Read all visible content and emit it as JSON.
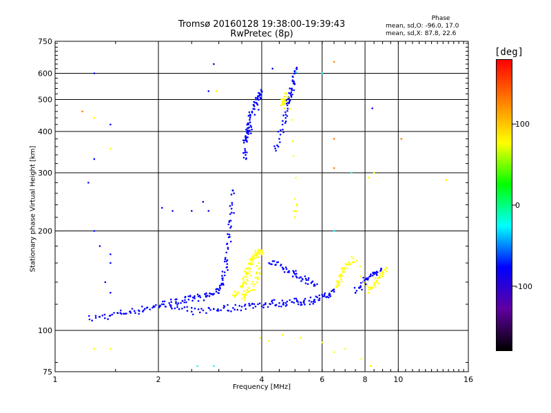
{
  "chart_data": {
    "type": "scatter",
    "title": "Tromsø 20160128 19:38:00-19:39:43",
    "subtitle": "RwPretec (8p)",
    "xlabel": "Frequency [MHz]",
    "ylabel": "Stationary phase Virtual Height [km]",
    "x_scale": "log",
    "y_scale": "log",
    "xlim": [
      1,
      16
    ],
    "ylim": [
      75,
      750
    ],
    "x_ticks": [
      1,
      2,
      4,
      6,
      8,
      10,
      16
    ],
    "y_ticks": [
      75,
      100,
      200,
      300,
      400,
      500,
      600,
      750
    ],
    "x_grid": [
      2,
      4,
      6,
      8,
      10
    ],
    "y_grid": [
      100,
      200,
      300,
      400,
      500,
      600
    ],
    "grid": true,
    "stats": {
      "header": "Phase",
      "line_o": "mean, sd,O: -96.0, 17.0",
      "line_x": "mean, sd,X:  87.8, 22.6"
    },
    "colorbar": {
      "unit": "[deg]",
      "range": [
        -180,
        180
      ],
      "ticks": [
        100,
        0,
        -100
      ],
      "colors": [
        "#ff0000",
        "#ff8000",
        "#ffff00",
        "#00ff00",
        "#00ffff",
        "#0000ff",
        "#6000a0",
        "#000000"
      ]
    },
    "traces": [
      {
        "phase": -100,
        "points": [
          [
            1.26,
            108
          ],
          [
            1.35,
            110
          ],
          [
            1.45,
            111
          ],
          [
            1.55,
            113
          ],
          [
            1.65,
            114
          ],
          [
            1.75,
            115
          ],
          [
            1.85,
            117
          ],
          [
            1.95,
            118
          ],
          [
            2.05,
            120
          ],
          [
            2.15,
            121
          ],
          [
            2.25,
            122
          ],
          [
            2.35,
            123
          ],
          [
            2.45,
            124
          ],
          [
            2.55,
            125
          ],
          [
            2.65,
            126
          ],
          [
            2.75,
            127
          ],
          [
            2.85,
            129
          ],
          [
            2.95,
            131
          ],
          [
            3.02,
            135
          ],
          [
            3.08,
            142
          ],
          [
            3.12,
            150
          ],
          [
            3.16,
            162
          ],
          [
            3.19,
            178
          ],
          [
            3.22,
            195
          ],
          [
            3.25,
            215
          ],
          [
            3.28,
            240
          ],
          [
            3.3,
            265
          ]
        ]
      },
      {
        "phase": -100,
        "points": [
          [
            2.1,
            118
          ],
          [
            2.3,
            116
          ],
          [
            2.5,
            114
          ],
          [
            2.7,
            115
          ],
          [
            2.9,
            116
          ],
          [
            3.1,
            117
          ],
          [
            3.3,
            117
          ],
          [
            3.5,
            118
          ],
          [
            3.7,
            119
          ],
          [
            3.9,
            120
          ],
          [
            4.1,
            120
          ],
          [
            4.3,
            121
          ],
          [
            4.5,
            121
          ],
          [
            4.7,
            121
          ],
          [
            4.9,
            122
          ],
          [
            5.1,
            122
          ],
          [
            5.3,
            122
          ],
          [
            5.5,
            123
          ],
          [
            5.7,
            124
          ],
          [
            5.9,
            125
          ],
          [
            6.1,
            127
          ],
          [
            6.3,
            129
          ],
          [
            6.5,
            131
          ]
        ]
      },
      {
        "phase": -100,
        "points": [
          [
            3.55,
            370
          ],
          [
            3.6,
            385
          ],
          [
            3.62,
            400
          ],
          [
            3.65,
            420
          ],
          [
            3.7,
            440
          ],
          [
            3.75,
            460
          ],
          [
            3.8,
            480
          ],
          [
            3.85,
            500
          ],
          [
            3.9,
            510
          ],
          [
            3.95,
            520
          ],
          [
            4.0,
            530
          ],
          [
            3.58,
            350
          ],
          [
            3.6,
            330
          ],
          [
            3.66,
            410
          ],
          [
            3.72,
            395
          ]
        ]
      },
      {
        "phase": -100,
        "points": [
          [
            4.4,
            350
          ],
          [
            4.5,
            380
          ],
          [
            4.6,
            420
          ],
          [
            4.7,
            450
          ],
          [
            4.75,
            480
          ],
          [
            4.8,
            500
          ],
          [
            4.85,
            520
          ],
          [
            4.9,
            540
          ],
          [
            4.95,
            560
          ],
          [
            5.0,
            600
          ],
          [
            5.05,
            620
          ]
        ]
      },
      {
        "phase": -100,
        "points": [
          [
            4.2,
            160
          ],
          [
            4.4,
            158
          ],
          [
            4.6,
            155
          ],
          [
            4.8,
            150
          ],
          [
            5.0,
            148
          ],
          [
            5.2,
            145
          ],
          [
            5.4,
            142
          ],
          [
            5.6,
            140
          ],
          [
            5.8,
            138
          ]
        ]
      },
      {
        "phase": -100,
        "points": [
          [
            7.5,
            130
          ],
          [
            7.7,
            135
          ],
          [
            7.9,
            140
          ],
          [
            8.1,
            143
          ],
          [
            8.3,
            146
          ],
          [
            8.5,
            148
          ],
          [
            8.7,
            150
          ],
          [
            8.9,
            152
          ]
        ]
      },
      {
        "phase": 100,
        "points": [
          [
            3.3,
            128
          ],
          [
            3.4,
            131
          ],
          [
            3.5,
            135
          ],
          [
            3.55,
            140
          ],
          [
            3.6,
            145
          ],
          [
            3.62,
            150
          ],
          [
            3.65,
            155
          ],
          [
            3.7,
            160
          ],
          [
            3.75,
            165
          ],
          [
            3.8,
            168
          ],
          [
            3.85,
            170
          ],
          [
            3.9,
            172
          ],
          [
            3.95,
            172
          ],
          [
            4.0,
            170
          ],
          [
            3.5,
            125
          ],
          [
            3.6,
            128
          ],
          [
            3.7,
            132
          ],
          [
            3.8,
            138
          ],
          [
            3.9,
            145
          ],
          [
            3.95,
            155
          ]
        ]
      },
      {
        "phase": 100,
        "points": [
          [
            4.55,
            480
          ],
          [
            4.6,
            500
          ],
          [
            4.65,
            470
          ],
          [
            4.7,
            520
          ],
          [
            4.75,
            510
          ],
          [
            5.0,
            250
          ],
          [
            5.0,
            220
          ]
        ]
      },
      {
        "phase": 100,
        "points": [
          [
            6.6,
            135
          ],
          [
            6.7,
            140
          ],
          [
            6.8,
            145
          ],
          [
            6.9,
            150
          ],
          [
            7.0,
            155
          ],
          [
            7.2,
            160
          ],
          [
            7.4,
            165
          ],
          [
            8.2,
            130
          ],
          [
            8.4,
            135
          ],
          [
            8.6,
            140
          ],
          [
            8.8,
            145
          ],
          [
            9.0,
            150
          ],
          [
            9.2,
            155
          ]
        ]
      }
    ],
    "scatter_extra": [
      {
        "phase": -100,
        "points": [
          [
            1.3,
            600
          ],
          [
            1.3,
            330
          ],
          [
            1.45,
            420
          ],
          [
            1.3,
            200
          ],
          [
            1.45,
            170
          ],
          [
            1.45,
            160
          ],
          [
            1.35,
            180
          ],
          [
            1.4,
            140
          ],
          [
            1.45,
            130
          ],
          [
            1.25,
            280
          ],
          [
            2.9,
            640
          ],
          [
            2.05,
            235
          ],
          [
            2.2,
            230
          ],
          [
            2.5,
            230
          ],
          [
            2.7,
            245
          ],
          [
            2.8,
            230
          ],
          [
            8.4,
            470
          ],
          [
            4.3,
            620
          ],
          [
            2.8,
            530
          ]
        ]
      },
      {
        "phase": 100,
        "points": [
          [
            1.3,
            440
          ],
          [
            1.45,
            355
          ],
          [
            1.3,
            88
          ],
          [
            1.45,
            88
          ],
          [
            2.95,
            530
          ],
          [
            8.5,
            300
          ],
          [
            8.2,
            290
          ],
          [
            3.95,
            95
          ],
          [
            4.2,
            93
          ],
          [
            4.6,
            97
          ],
          [
            5.2,
            95
          ],
          [
            6.0,
            92
          ],
          [
            6.5,
            86
          ],
          [
            7.0,
            88
          ],
          [
            7.8,
            82
          ],
          [
            8.3,
            78
          ],
          [
            13.8,
            285
          ]
        ]
      },
      {
        "phase": 150,
        "points": [
          [
            1.2,
            460
          ],
          [
            6.5,
            650
          ],
          [
            6.5,
            310
          ],
          [
            10.2,
            380
          ],
          [
            6.5,
            380
          ]
        ]
      },
      {
        "phase": 0,
        "points": [
          [
            2.6,
            78
          ],
          [
            2.9,
            78
          ],
          [
            6.0,
            600
          ],
          [
            5.05,
            605
          ],
          [
            7.3,
            300
          ],
          [
            6.5,
            200
          ]
        ]
      }
    ]
  }
}
